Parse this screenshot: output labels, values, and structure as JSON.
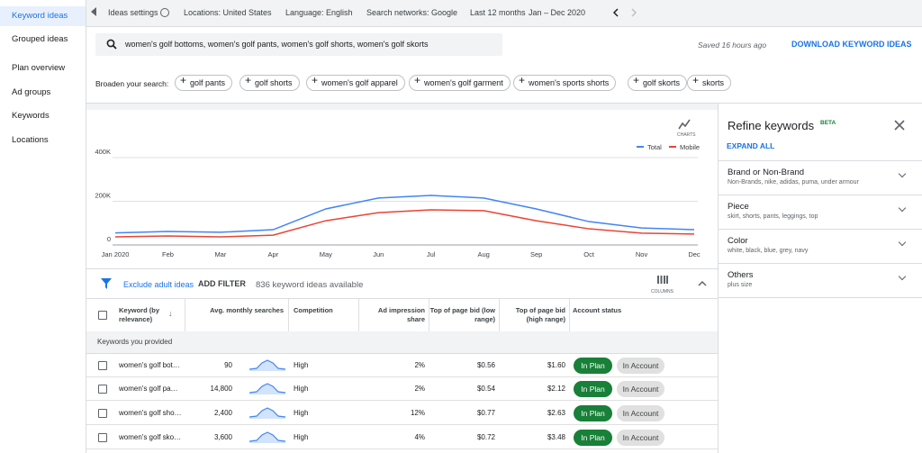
{
  "sidebar": {
    "items": [
      "Keyword ideas",
      "Grouped ideas",
      "Plan overview",
      "Ad groups",
      "Keywords",
      "Locations"
    ]
  },
  "top_bar": {
    "settings": "Ideas settings",
    "locations": "Locations: United States",
    "language": "Language: English",
    "networks": "Search networks: Google",
    "period": "Last 12 months",
    "range": "Jan – Dec 2020"
  },
  "search": {
    "query": "women's golf bottoms, women's golf pants, women's golf shorts, women's golf skorts",
    "saved": "Saved 16 hours ago",
    "download": "DOWNLOAD KEYWORD IDEAS"
  },
  "broaden": {
    "label": "Broaden your search:",
    "chips": [
      "golf pants",
      "golf shorts",
      "women's golf apparel",
      "women's golf garment",
      "women's sports shorts",
      "golf skorts",
      "skorts"
    ]
  },
  "chart_controls": {
    "charts": "CHARTS"
  },
  "chart_data": {
    "type": "line",
    "categories": [
      "Jan 2020",
      "Feb",
      "Mar",
      "Apr",
      "May",
      "Jun",
      "Jul",
      "Aug",
      "Sep",
      "Oct",
      "Nov",
      "Dec"
    ],
    "series": [
      {
        "name": "Total",
        "color": "#4285f4",
        "values": [
          55000,
          62000,
          58000,
          70000,
          165000,
          215000,
          227000,
          215000,
          165000,
          107000,
          78000,
          70000
        ]
      },
      {
        "name": "Mobile",
        "color": "#ea4335",
        "values": [
          37000,
          41000,
          37000,
          45000,
          111000,
          148000,
          161000,
          157000,
          111000,
          74000,
          54000,
          50000
        ]
      }
    ],
    "ylim": [
      0,
      400000
    ],
    "yticks": [
      0,
      {
        "value": 200000,
        "label": "200K"
      },
      {
        "value": 400000,
        "label": "400K"
      }
    ],
    "grid": true
  },
  "filter": {
    "exclude": "Exclude adult ideas",
    "add": "ADD FILTER",
    "count": "836 keyword ideas available",
    "columns": "COLUMNS"
  },
  "table": {
    "headers": [
      "Keyword (by relevance)",
      "Avg. monthly searches",
      "Competition",
      "Ad impression share",
      "Top of page bid (low range)",
      "Top of page bid (high range)",
      "Account status"
    ],
    "group": "Keywords you provided",
    "rows": [
      [
        "women's golf bot…",
        "90",
        "High",
        "2%",
        "$0.56",
        "$1.60",
        "In Plan",
        "In Account"
      ],
      [
        "women's golf pa…",
        "14,800",
        "High",
        "2%",
        "$0.54",
        "$2.12",
        "In Plan",
        "In Account"
      ],
      [
        "women's golf sho…",
        "2,400",
        "High",
        "12%",
        "$0.77",
        "$2.63",
        "In Plan",
        "In Account"
      ],
      [
        "women's golf sko…",
        "3,600",
        "High",
        "4%",
        "$0.72",
        "$3.48",
        "In Plan",
        "In Account"
      ]
    ]
  },
  "refine": {
    "title": "Refine keywords",
    "beta": "BETA",
    "expand": "EXPAND ALL",
    "sections": [
      {
        "title": "Brand or Non-Brand",
        "subtitle": "Non-Brands, nike, adidas, puma, under armour"
      },
      {
        "title": "Piece",
        "subtitle": "skirt, shorts, pants, leggings, top"
      },
      {
        "title": "Color",
        "subtitle": "white, black, blue, grey, navy"
      },
      {
        "title": "Others",
        "subtitle": "plus size"
      }
    ]
  }
}
